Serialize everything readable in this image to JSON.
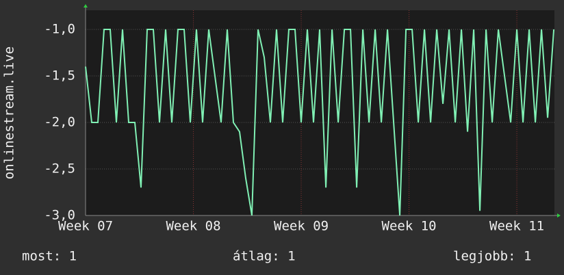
{
  "chart_data": {
    "type": "line",
    "ylabel": "onlinestream.live",
    "x": [
      0,
      0.4,
      0.8,
      1.2,
      1.6,
      2.0,
      2.4,
      2.8,
      3.2,
      3.6,
      4.0,
      4.4,
      4.8,
      5.2,
      5.6,
      6.0,
      6.4,
      6.8,
      7.2,
      7.6,
      8.0,
      8.4,
      8.8,
      9.2,
      9.6,
      10.0,
      10.4,
      10.8,
      11.2,
      11.6,
      12.0,
      12.4,
      12.8,
      13.2,
      13.6,
      14.0,
      14.4,
      14.8,
      15.2,
      15.6,
      16.0,
      16.4,
      16.8,
      17.2,
      17.6,
      18.0,
      18.4,
      18.8,
      19.2,
      19.6,
      20.0,
      20.4,
      20.8,
      21.2,
      21.6,
      22.0,
      22.4,
      22.8,
      23.2,
      23.6,
      24.0,
      24.4,
      24.8,
      25.2,
      25.6,
      26.0,
      26.4,
      26.8,
      27.2,
      27.6,
      28.0,
      28.4,
      28.8,
      29.2,
      29.6,
      30.0,
      30.4
    ],
    "series": [
      {
        "color": "#80f0b4",
        "values": [
          -1.4,
          -2,
          -2,
          -1,
          -1,
          -2,
          -1,
          -2,
          -2,
          -2.7,
          -1,
          -1,
          -2,
          -1,
          -2,
          -1,
          -1,
          -2,
          -1,
          -2,
          -1,
          -1.5,
          -2,
          -1,
          -2,
          -2.1,
          -2.6,
          -3.0,
          -1,
          -1.3,
          -2,
          -1,
          -2,
          -1,
          -1,
          -2,
          -1,
          -2,
          -1,
          -2.7,
          -1,
          -2,
          -1,
          -1,
          -2.7,
          -1,
          -2,
          -1,
          -2,
          -1,
          -2,
          -3.0,
          -1,
          -1,
          -2,
          -1,
          -2,
          -1,
          -1.8,
          -1,
          -2,
          -1,
          -2.1,
          -1,
          -2.95,
          -1,
          -2,
          -1,
          -1.5,
          -2,
          -1,
          -2,
          -1,
          -2,
          -1,
          -1.95,
          -1
        ]
      }
    ],
    "xlim": [
      0,
      30.44
    ],
    "xticks": [
      {
        "value": 0,
        "label": "Week 07"
      },
      {
        "value": 7,
        "label": "Week 08"
      },
      {
        "value": 14,
        "label": "Week 09"
      },
      {
        "value": 21,
        "label": "Week 10"
      },
      {
        "value": 28,
        "label": "Week 11"
      }
    ],
    "ylim": [
      -3.0,
      -0.794
    ],
    "yticks": [
      {
        "value": -3,
        "label": "-3,0"
      },
      {
        "value": -2.5,
        "label": "-2,5"
      },
      {
        "value": -2,
        "label": "-2,0"
      },
      {
        "value": -1.5,
        "label": "-1,5"
      },
      {
        "value": -1,
        "label": "-1,0"
      }
    ],
    "grid": true,
    "annotations": [
      "most: 1",
      "átlag: 1",
      "legjobb: 1"
    ]
  }
}
